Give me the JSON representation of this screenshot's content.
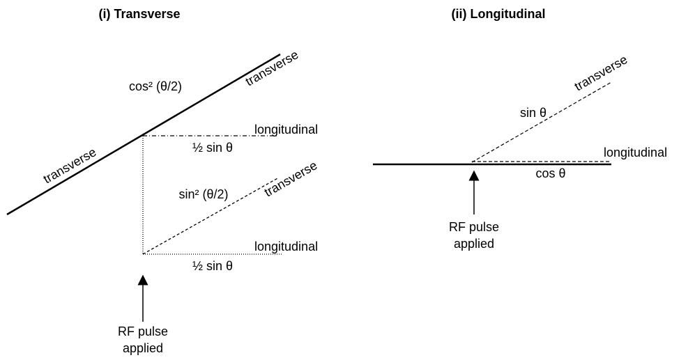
{
  "panels": [
    {
      "title": "(i) Transverse",
      "labels": [
        "transverse",
        "cos² (θ/2)",
        "transverse",
        "longitudinal",
        "½ sin θ",
        "sin² (θ/2)",
        "transverse",
        "longitudinal",
        "½ sin θ"
      ],
      "pulse": [
        "RF pulse",
        "applied"
      ]
    },
    {
      "title": "(ii) Longitudinal",
      "labels": [
        "transverse",
        "sin θ",
        "longitudinal",
        "cos θ"
      ],
      "pulse": [
        "RF pulse",
        "applied"
      ]
    }
  ]
}
